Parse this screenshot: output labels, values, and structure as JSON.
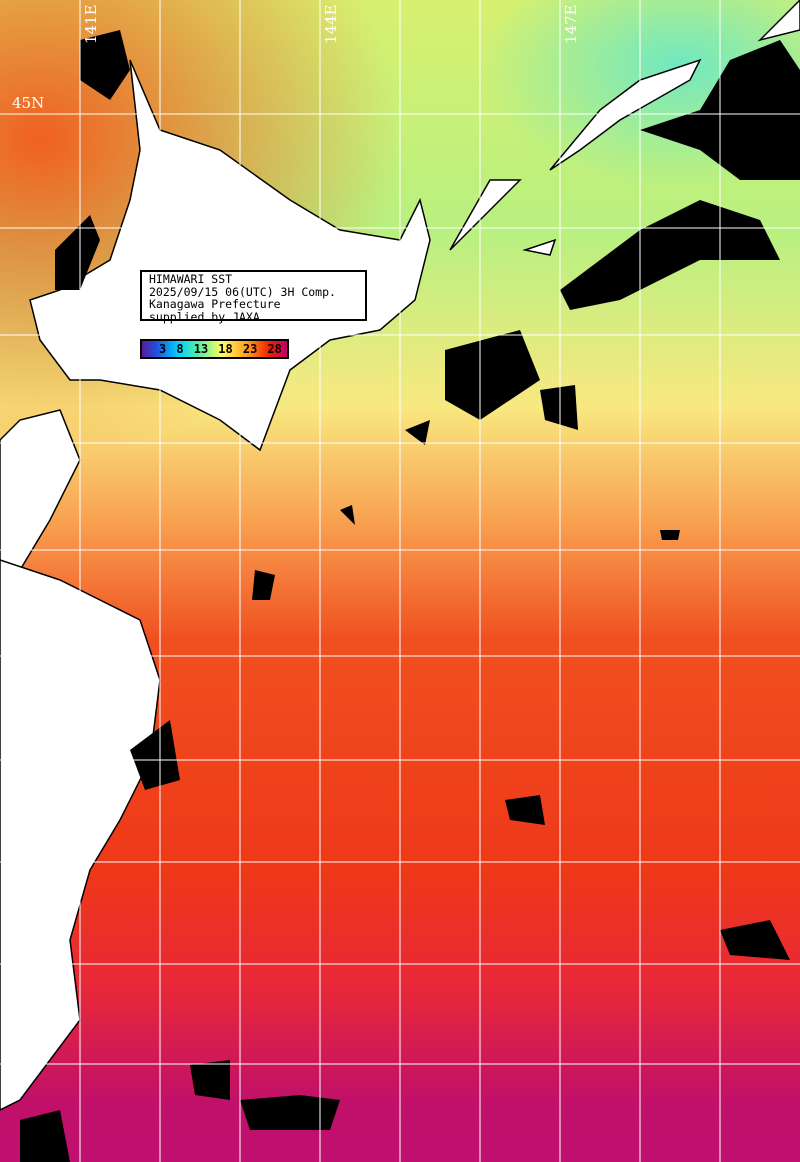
{
  "map": {
    "title_lines": [
      "HIMAWARI SST",
      "2025/09/15 06(UTC) 3H Comp.",
      "Kanagawa Prefecture",
      "supplied by JAXA"
    ],
    "longitude_labels": [
      "141E",
      "144E",
      "147E"
    ],
    "latitude_labels": [
      "45N"
    ],
    "legend": {
      "unit_values": [
        "3",
        "8",
        "13",
        "18",
        "23",
        "28"
      ]
    },
    "colors": {
      "land": "#ffffff",
      "cloud": "#000000",
      "grid": "#ffffff",
      "warm": "#f04010",
      "cool": "#b0f080",
      "hot": "#c01070"
    }
  }
}
